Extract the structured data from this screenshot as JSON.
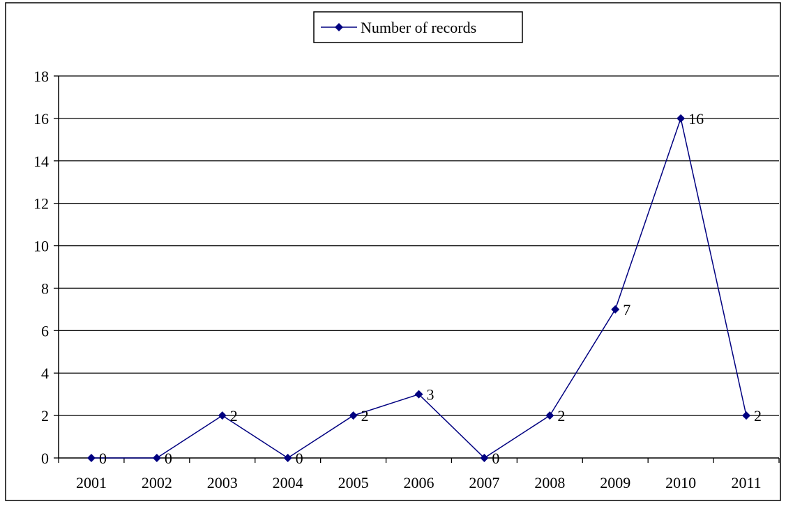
{
  "chart_data": {
    "type": "line",
    "title": "",
    "xlabel": "",
    "ylabel": "",
    "categories": [
      "2001",
      "2002",
      "2003",
      "2004",
      "2005",
      "2006",
      "2007",
      "2008",
      "2009",
      "2010",
      "2011"
    ],
    "ylim": [
      0,
      18
    ],
    "yticks": [
      0,
      2,
      4,
      6,
      8,
      10,
      12,
      14,
      16,
      18
    ],
    "grid": true,
    "legend_position": "top-center",
    "series": [
      {
        "name": "Number of records",
        "values": [
          0,
          0,
          2,
          0,
          2,
          3,
          0,
          2,
          7,
          16,
          2
        ],
        "data_labels": [
          "0",
          "0",
          "2",
          "0",
          "2",
          "3",
          "0",
          "2",
          "7",
          "16",
          "2"
        ],
        "color": "#000080",
        "marker": "diamond"
      }
    ]
  }
}
